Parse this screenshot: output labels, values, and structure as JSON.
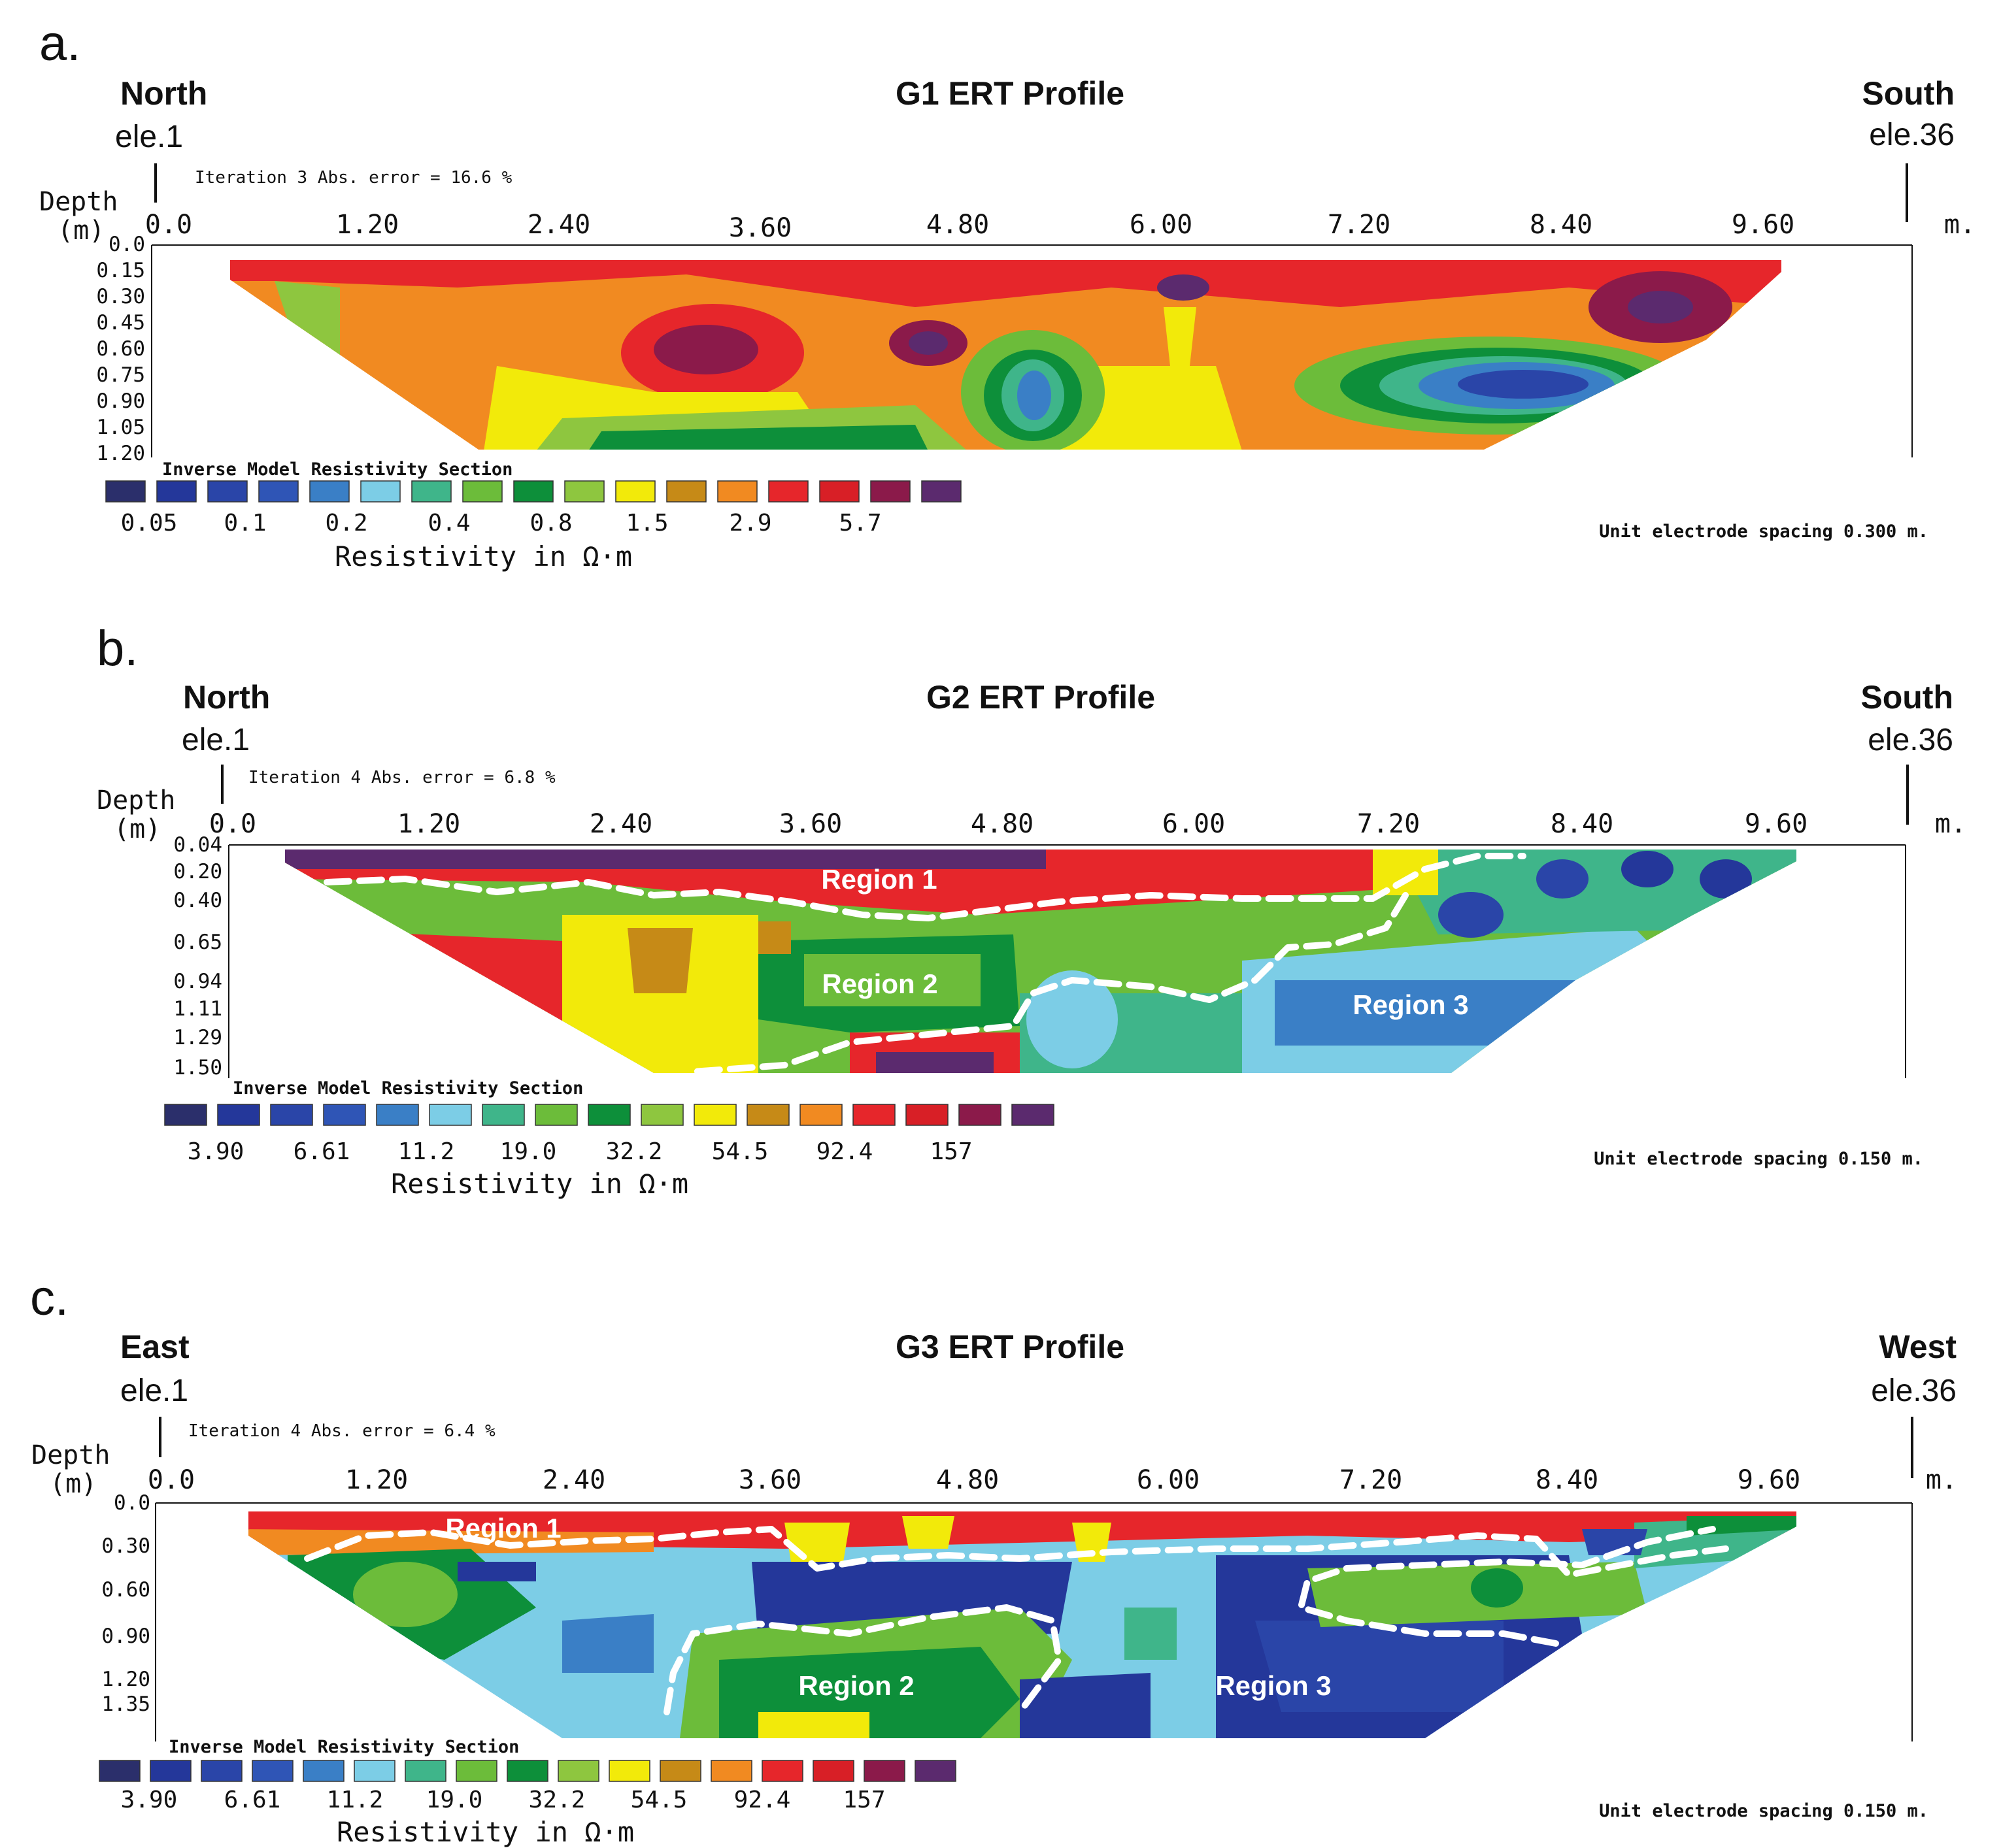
{
  "colors": [
    "#2b2f6b",
    "#24379a",
    "#2a45a8",
    "#2f55b6",
    "#3a7fc6",
    "#7ccde6",
    "#3fb58a",
    "#6cbc3a",
    "#0d8f3a",
    "#8ec63f",
    "#f2ea0a",
    "#c68a17",
    "#f18a21",
    "#e6262b",
    "#d81f26",
    "#8b1a4a",
    "#5b2a6e"
  ],
  "profiles": [
    {
      "letter": "a.",
      "left_dir": "North",
      "right_dir": "South",
      "left_ele": "ele.1",
      "right_ele": "ele.36",
      "title": "G1 ERT Profile",
      "iteration": "Iteration 3 Abs. error = 16.6 %",
      "depth_label": "Depth",
      "depth_unit": "(m)",
      "x_ticks": [
        "0.0",
        "1.20",
        "2.40",
        "3.60",
        "4.80",
        "6.00",
        "7.20",
        "8.40",
        "9.60"
      ],
      "x_unit": "m.",
      "depth_ticks": [
        "0.0",
        "0.15",
        "0.30",
        "0.45",
        "0.60",
        "0.75",
        "0.90",
        "1.05",
        "1.20"
      ],
      "legend_title": "Inverse Model Resistivity Section",
      "legend_values": [
        "0.05",
        "0.1",
        "0.2",
        "0.4",
        "0.8",
        "1.5",
        "2.9",
        "5.7"
      ],
      "resistivity_label": "Resistivity in Ω·m",
      "spacing": "Unit electrode spacing 0.300 m.",
      "regions": []
    },
    {
      "letter": "b.",
      "left_dir": "North",
      "right_dir": "South",
      "left_ele": "ele.1",
      "right_ele": "ele.36",
      "title": "G2 ERT Profile",
      "iteration": "Iteration 4 Abs. error = 6.8 %",
      "depth_label": "Depth",
      "depth_unit": "(m)",
      "x_ticks": [
        "0.0",
        "1.20",
        "2.40",
        "3.60",
        "4.80",
        "6.00",
        "7.20",
        "8.40",
        "9.60"
      ],
      "x_unit": "m.",
      "depth_ticks": [
        "0.04",
        "0.20",
        "0.40",
        "0.65",
        "0.94",
        "1.11",
        "1.29",
        "1.50"
      ],
      "legend_title": "Inverse Model Resistivity Section",
      "legend_values": [
        "3.90",
        "6.61",
        "11.2",
        "19.0",
        "32.2",
        "54.5",
        "92.4",
        "157"
      ],
      "resistivity_label": "Resistivity in Ω·m",
      "spacing": "Unit electrode spacing 0.150 m.",
      "regions": [
        "Region 1",
        "Region 2",
        "Region 3"
      ]
    },
    {
      "letter": "c.",
      "left_dir": "East",
      "right_dir": "West",
      "left_ele": "ele.1",
      "right_ele": "ele.36",
      "title": "G3 ERT Profile",
      "iteration": "Iteration 4 Abs. error = 6.4 %",
      "depth_label": "Depth",
      "depth_unit": "(m)",
      "x_ticks": [
        "0.0",
        "1.20",
        "2.40",
        "3.60",
        "4.80",
        "6.00",
        "7.20",
        "8.40",
        "9.60"
      ],
      "x_unit": "m.",
      "depth_ticks": [
        "0.0",
        "0.30",
        "0.60",
        "0.90",
        "1.20",
        "1.35"
      ],
      "legend_title": "Inverse Model Resistivity Section",
      "legend_values": [
        "3.90",
        "6.61",
        "11.2",
        "19.0",
        "32.2",
        "54.5",
        "92.4",
        "157"
      ],
      "resistivity_label": "Resistivity in Ω·m",
      "spacing": "Unit electrode spacing 0.150 m.",
      "regions": [
        "Region 1",
        "Region 2",
        "Region 3"
      ]
    }
  ]
}
